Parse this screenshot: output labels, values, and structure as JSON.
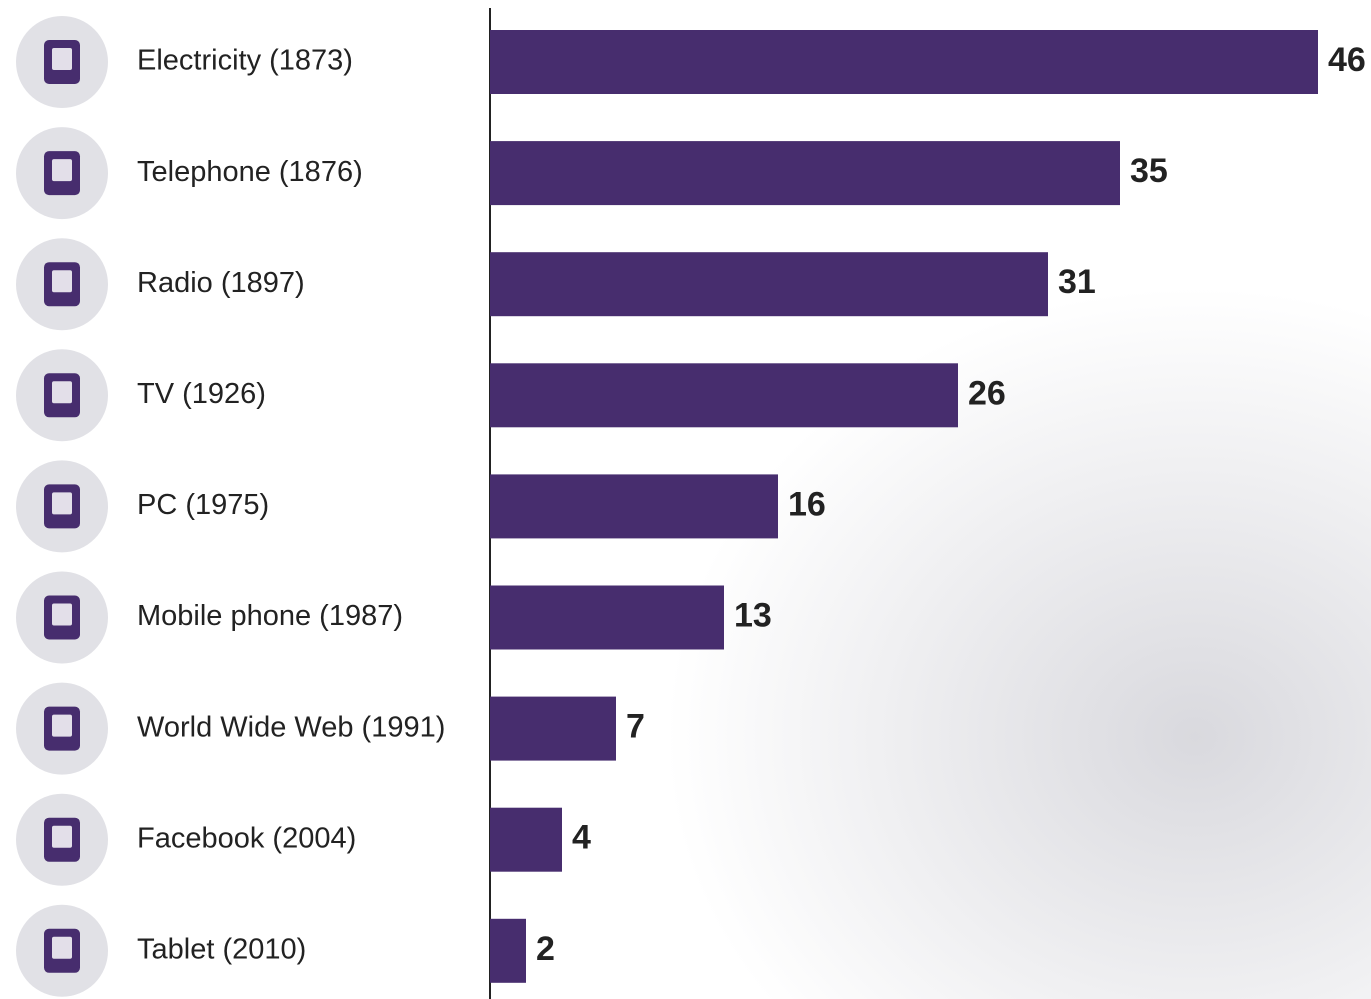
{
  "chart_data": {
    "type": "bar",
    "orientation": "horizontal",
    "categories": [
      "Electricity (1873)",
      "Telephone (1876)",
      "Radio (1897)",
      "TV (1926)",
      "PC (1975)",
      "Mobile phone (1987)",
      "World Wide Web (1991)",
      "Facebook (2004)",
      "Tablet (2010)"
    ],
    "values": [
      46,
      35,
      31,
      26,
      16,
      13,
      7,
      4,
      2
    ],
    "color": "#472d6e"
  }
}
